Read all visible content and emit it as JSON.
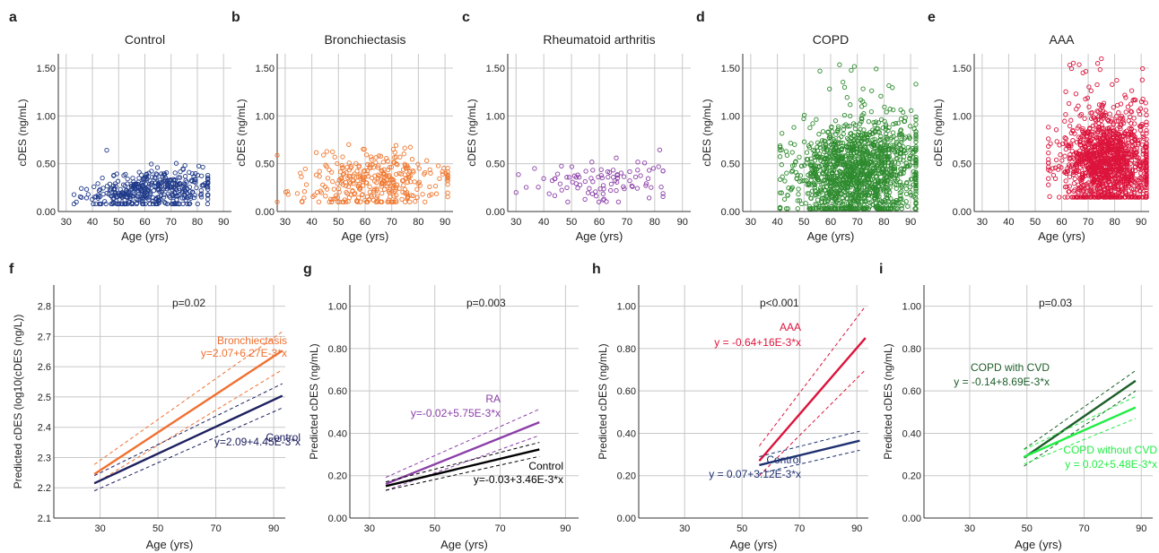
{
  "chart_data": [
    {
      "id": "a",
      "panel_label": "a",
      "type": "scatter",
      "title": "Control",
      "xlabel": "Age (yrs)",
      "ylabel": "cDES (ng/mL)",
      "xlim": [
        27,
        93
      ],
      "ylim": [
        0,
        1.65
      ],
      "xticks": [
        30,
        40,
        50,
        60,
        70,
        80,
        90
      ],
      "yticks": [
        0,
        0.5,
        1.0,
        1.5
      ],
      "yticklabels": [
        "0.00",
        "0.50",
        "1.00",
        "1.50"
      ],
      "color": "#1f3a8a",
      "grid": true,
      "series": [
        {
          "x_range": [
            33,
            84
          ],
          "y_range": [
            0.08,
            0.68
          ],
          "n_points": 420,
          "y_center": 0.22
        }
      ]
    },
    {
      "id": "b",
      "panel_label": "b",
      "type": "scatter",
      "title": "Bronchiectasis",
      "xlabel": "Age (yrs)",
      "ylabel": "cDES (ng/mL)",
      "xlim": [
        27,
        93
      ],
      "ylim": [
        0,
        1.65
      ],
      "xticks": [
        30,
        40,
        50,
        60,
        70,
        80,
        90
      ],
      "yticks": [
        0,
        0.5,
        1.0,
        1.5
      ],
      "yticklabels": [
        "0.00",
        "0.50",
        "1.00",
        "1.50"
      ],
      "color": "#f07830",
      "grid": true,
      "series": [
        {
          "x_range": [
            27,
            91
          ],
          "y_range": [
            0.1,
            0.98
          ],
          "n_points": 330,
          "y_center": 0.3
        }
      ]
    },
    {
      "id": "c",
      "panel_label": "c",
      "type": "scatter",
      "title": "Rheumatoid arthritis",
      "xlabel": "Age (yrs)",
      "ylabel": "cDES (ng/mL)",
      "xlim": [
        27,
        93
      ],
      "ylim": [
        0,
        1.65
      ],
      "xticks": [
        30,
        40,
        50,
        60,
        70,
        80,
        90
      ],
      "yticks": [
        0,
        0.5,
        1.0,
        1.5
      ],
      "yticklabels": [
        "0.00",
        "0.50",
        "1.00",
        "1.50"
      ],
      "color": "#8b3fa8",
      "grid": true,
      "series": [
        {
          "x_range": [
            30,
            83
          ],
          "y_range": [
            0.1,
            0.72
          ],
          "n_points": 95,
          "y_center": 0.32
        }
      ]
    },
    {
      "id": "d",
      "panel_label": "d",
      "type": "scatter",
      "title": "COPD",
      "xlabel": "Age (yrs)",
      "ylabel": "cDES (ng/mL)",
      "xlim": [
        27,
        93
      ],
      "ylim": [
        0,
        1.65
      ],
      "xticks": [
        30,
        40,
        50,
        60,
        70,
        80,
        90
      ],
      "yticks": [
        0,
        0.5,
        1.0,
        1.5
      ],
      "yticklabels": [
        "0.00",
        "0.50",
        "1.00",
        "1.50"
      ],
      "color": "#2e8b2e",
      "grid": true,
      "series": [
        {
          "x_range": [
            41,
            92
          ],
          "y_range": [
            0.03,
            1.63
          ],
          "n_points": 1400,
          "y_center": 0.4
        }
      ]
    },
    {
      "id": "e",
      "panel_label": "e",
      "type": "scatter",
      "title": "AAA",
      "xlabel": "Age (yrs)",
      "ylabel": "cDES (ng/mL)",
      "xlim": [
        27,
        93
      ],
      "ylim": [
        0,
        1.65
      ],
      "xticks": [
        30,
        40,
        50,
        60,
        70,
        80,
        90
      ],
      "yticks": [
        0,
        0.5,
        1.0,
        1.5
      ],
      "yticklabels": [
        "0.00",
        "0.50",
        "1.00",
        "1.50"
      ],
      "color": "#dc143c",
      "grid": true,
      "series": [
        {
          "x_range": [
            55,
            92
          ],
          "y_range": [
            0.15,
            1.6
          ],
          "n_points": 1300,
          "y_center": 0.5
        }
      ]
    },
    {
      "id": "f",
      "panel_label": "f",
      "type": "line",
      "title": "",
      "xlabel": "Age (yrs)",
      "ylabel": "Predicted cDES (log10(cDES (ng/L))",
      "xlim": [
        14,
        94
      ],
      "ylim": [
        2.1,
        2.87
      ],
      "xticks": [
        30,
        50,
        70,
        90
      ],
      "yticks": [
        2.1,
        2.2,
        2.3,
        2.4,
        2.5,
        2.6,
        2.7,
        2.8
      ],
      "yticklabels": [
        "2.1",
        "2.2",
        "2.3",
        "2.4",
        "2.5",
        "2.6",
        "2.7",
        "2.8"
      ],
      "grid": true,
      "annotation": "p=0.02",
      "series": [
        {
          "name": "Bronchiectasis",
          "equation": "y=2.07+6.27E-3*x",
          "color": "#f07030",
          "x": [
            28,
            93
          ],
          "y": [
            2.245,
            2.653
          ],
          "ci_lower": [
            2.213,
            2.59
          ],
          "ci_upper": [
            2.277,
            2.716
          ]
        },
        {
          "name": "Control",
          "equation": "y=2.09+4.45E-3*x",
          "color": "#1e2060",
          "x": [
            28,
            93
          ],
          "y": [
            2.215,
            2.504
          ],
          "ci_lower": [
            2.19,
            2.464
          ],
          "ci_upper": [
            2.24,
            2.544
          ]
        }
      ]
    },
    {
      "id": "g",
      "panel_label": "g",
      "type": "line",
      "title": "",
      "xlabel": "Age (yrs)",
      "ylabel": "Predicted cDES (ng/mL)",
      "xlim": [
        24,
        94
      ],
      "ylim": [
        0,
        1.1
      ],
      "xticks": [
        30,
        50,
        70,
        90
      ],
      "yticks": [
        0,
        0.2,
        0.4,
        0.6,
        0.8,
        1.0
      ],
      "yticklabels": [
        "0.00",
        "0.20",
        "0.40",
        "0.60",
        "0.80",
        "1.00"
      ],
      "grid": true,
      "annotation": "p=0.003",
      "series": [
        {
          "name": "RA",
          "equation": "y=-0.02+5.75E-3*x",
          "color": "#8b3fa8",
          "x": [
            35,
            82
          ],
          "y": [
            0.161,
            0.452
          ],
          "ci_lower": [
            0.13,
            0.39
          ],
          "ci_upper": [
            0.192,
            0.514
          ]
        },
        {
          "name": "Control",
          "equation": "y=-0.03+3.46E-3*x",
          "color": "#000000",
          "x": [
            35,
            82
          ],
          "y": [
            0.151,
            0.324
          ],
          "ci_lower": [
            0.131,
            0.291
          ],
          "ci_upper": [
            0.171,
            0.357
          ]
        }
      ]
    },
    {
      "id": "h",
      "panel_label": "h",
      "type": "line",
      "title": "",
      "xlabel": "Age (yrs)",
      "ylabel": "Predicted cDES (ng/mL)",
      "xlim": [
        14,
        94
      ],
      "ylim": [
        0,
        1.1
      ],
      "xticks": [
        30,
        50,
        70,
        90
      ],
      "yticks": [
        0,
        0.2,
        0.4,
        0.6,
        0.8,
        1.0
      ],
      "yticklabels": [
        "0.00",
        "0.20",
        "0.40",
        "0.60",
        "0.80",
        "1.00"
      ],
      "grid": true,
      "annotation": "p<0.001",
      "series": [
        {
          "name": "AAA",
          "equation": "y = -0.64+16E-3*x",
          "color": "#dc143c",
          "x": [
            56,
            93
          ],
          "y": [
            0.27,
            0.85
          ],
          "ci_lower": [
            0.2,
            0.7
          ],
          "ci_upper": [
            0.34,
            1.0
          ]
        },
        {
          "name": "Control",
          "equation": "y = 0.07+3.12E-3*x",
          "color": "#1e3070",
          "x": [
            56,
            91
          ],
          "y": [
            0.25,
            0.365
          ],
          "ci_lower": [
            0.21,
            0.32
          ],
          "ci_upper": [
            0.29,
            0.41
          ]
        }
      ]
    },
    {
      "id": "i",
      "panel_label": "i",
      "type": "line",
      "title": "",
      "xlabel": "Age (yrs)",
      "ylabel": "Predicted cDES (ng/mL)",
      "xlim": [
        14,
        94
      ],
      "ylim": [
        0,
        1.1
      ],
      "xticks": [
        30,
        50,
        70,
        90
      ],
      "yticks": [
        0,
        0.2,
        0.4,
        0.6,
        0.8,
        1.0
      ],
      "yticklabels": [
        "0.00",
        "0.20",
        "0.40",
        "0.60",
        "0.80",
        "1.00"
      ],
      "grid": true,
      "annotation": "p=0.03",
      "series": [
        {
          "name": "COPD with CVD",
          "equation": "y = -0.14+8.69E-3*x",
          "color": "#1e5e2a",
          "x": [
            49,
            88
          ],
          "y": [
            0.285,
            0.648
          ],
          "ci_lower": [
            0.245,
            0.6
          ],
          "ci_upper": [
            0.325,
            0.696
          ]
        },
        {
          "name": "COPD without CVD",
          "equation": "y = 0.02+5.48E-3*x",
          "color": "#22ee44",
          "x": [
            49,
            88
          ],
          "y": [
            0.289,
            0.522
          ],
          "ci_lower": [
            0.255,
            0.47
          ],
          "ci_upper": [
            0.323,
            0.574
          ]
        }
      ]
    }
  ],
  "layout_note": ""
}
